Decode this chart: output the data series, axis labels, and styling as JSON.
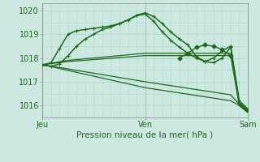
{
  "title": "",
  "xlabel": "Pression niveau de la mer( hPa )",
  "bg_color": "#cce8e0",
  "grid_color": "#b8ddd4",
  "line_color": "#1a6b1a",
  "ylim": [
    1015.5,
    1020.3
  ],
  "xlim": [
    0,
    48
  ],
  "yticks": [
    1016,
    1017,
    1018,
    1019,
    1020
  ],
  "xtick_positions": [
    0,
    24,
    48
  ],
  "xtick_labels": [
    "Jeu",
    "Ven",
    "Sam"
  ],
  "vline_color": "#5a9a7a",
  "series": [
    {
      "x": [
        0,
        2,
        4,
        6,
        8,
        10,
        12,
        14,
        16,
        18,
        20,
        22,
        24,
        26,
        28,
        30,
        32,
        34,
        36,
        38,
        40,
        42,
        44,
        46,
        48
      ],
      "y": [
        1017.7,
        1017.8,
        1018.4,
        1019.0,
        1019.15,
        1019.2,
        1019.25,
        1019.3,
        1019.35,
        1019.45,
        1019.6,
        1019.8,
        1019.9,
        1019.75,
        1019.45,
        1019.1,
        1018.8,
        1018.55,
        1018.05,
        1017.85,
        1018.0,
        1018.3,
        1018.5,
        1016.1,
        1015.8
      ],
      "marker": "+",
      "markersize": 3.5,
      "linewidth": 1.1
    },
    {
      "x": [
        0,
        2,
        4,
        6,
        8,
        10,
        12,
        14,
        16,
        18,
        20,
        22,
        24,
        26,
        28,
        30,
        32,
        34,
        36,
        38,
        40,
        42,
        44,
        46,
        48
      ],
      "y": [
        1017.7,
        1017.65,
        1017.75,
        1018.1,
        1018.5,
        1018.8,
        1019.0,
        1019.2,
        1019.3,
        1019.45,
        1019.6,
        1019.78,
        1019.85,
        1019.55,
        1019.1,
        1018.75,
        1018.45,
        1018.2,
        1018.0,
        1017.85,
        1017.8,
        1018.0,
        1018.45,
        1016.2,
        1015.85
      ],
      "marker": "+",
      "markersize": 3.5,
      "linewidth": 1.1
    },
    {
      "x": [
        0,
        6,
        24,
        44,
        46,
        48
      ],
      "y": [
        1017.72,
        1017.9,
        1018.2,
        1018.2,
        1016.1,
        1015.75
      ],
      "marker": null,
      "markersize": 0,
      "linewidth": 0.9
    },
    {
      "x": [
        0,
        6,
        24,
        44,
        46,
        48
      ],
      "y": [
        1017.72,
        1017.85,
        1018.1,
        1018.1,
        1016.0,
        1015.7
      ],
      "marker": null,
      "markersize": 0,
      "linewidth": 0.9
    },
    {
      "x": [
        0,
        24,
        44,
        46,
        48
      ],
      "y": [
        1017.72,
        1017.0,
        1016.45,
        1016.05,
        1015.75
      ],
      "marker": null,
      "markersize": 0,
      "linewidth": 0.9
    },
    {
      "x": [
        0,
        24,
        44,
        46,
        48
      ],
      "y": [
        1017.72,
        1016.75,
        1016.2,
        1016.0,
        1015.72
      ],
      "marker": null,
      "markersize": 0,
      "linewidth": 0.9
    },
    {
      "x": [
        32,
        34,
        36,
        38,
        40,
        42,
        44
      ],
      "y": [
        1018.0,
        1018.2,
        1018.45,
        1018.55,
        1018.5,
        1018.35,
        1018.1
      ],
      "marker": "D",
      "markersize": 2.5,
      "linewidth": 1.0
    }
  ]
}
